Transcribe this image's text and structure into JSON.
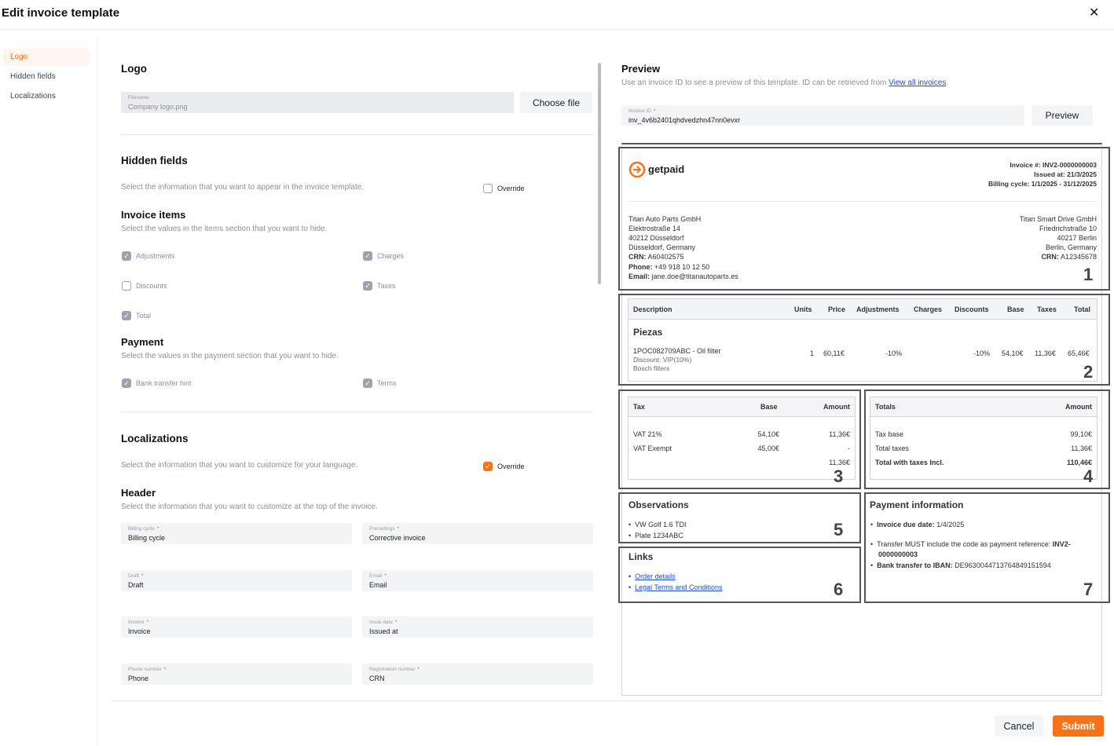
{
  "modal": {
    "title": "Edit invoice template"
  },
  "sidebar": {
    "items": [
      {
        "label": "Logo"
      },
      {
        "label": "Hidden fields"
      },
      {
        "label": "Localizations"
      }
    ]
  },
  "logo": {
    "heading": "Logo",
    "filename_label": "Filename",
    "filename_value": "Company logo.png",
    "choose_file": "Choose file"
  },
  "hidden_fields": {
    "heading": "Hidden fields",
    "description": "Select the information that you want to appear in the invoice template.",
    "override_label": "Override",
    "override_checked": false,
    "invoice_items": {
      "heading": "Invoice items",
      "description": "Select the values in the items section that you want to hide.",
      "options": [
        {
          "label": "Adjustments",
          "checked": true
        },
        {
          "label": "Charges",
          "checked": true
        },
        {
          "label": "Discounts",
          "checked": false
        },
        {
          "label": "Taxes",
          "checked": true
        },
        {
          "label": "Total",
          "checked": true
        }
      ]
    },
    "payment": {
      "heading": "Payment",
      "description": "Select the values in the payment section that you want to hide.",
      "options": [
        {
          "label": "Bank transfer hint",
          "checked": true
        },
        {
          "label": "Terms",
          "checked": true
        }
      ]
    }
  },
  "localizations": {
    "heading": "Localizations",
    "description": "Select the information that you want to customize for your language.",
    "override_label": "Override",
    "override_checked": true,
    "header": {
      "heading": "Header",
      "description": "Select the information that you want to customize at the top of the invoice.",
      "fields": [
        {
          "label": "Billing cycle",
          "value": "Billing cycle"
        },
        {
          "label": "Precedings",
          "value": "Corrective invoice"
        },
        {
          "label": "Draft",
          "value": "Draft"
        },
        {
          "label": "Email",
          "value": "Email"
        },
        {
          "label": "Invoice",
          "value": "Invoice"
        },
        {
          "label": "Issue date",
          "value": "Issued at"
        },
        {
          "label": "Phone number",
          "value": "Phone"
        },
        {
          "label": "Registration number",
          "value": "CRN"
        }
      ]
    }
  },
  "preview": {
    "heading": "Preview",
    "description": "Use an invoice ID to see a preview of this template. ID can be retrieved from ",
    "link": "View all invoices",
    "description_end": ".",
    "invoice_id_label": "Invoice ID",
    "invoice_id_value": "inv_4v6b2401qhdvedzhn47nn0evxr",
    "button": "Preview"
  },
  "invoice": {
    "brand": "getpaid",
    "meta": [
      "Invoice #: INV2-0000000003",
      "Issued at: 21/3/2025",
      "Billing cycle: 1/1/2025 - 31/12/2025"
    ],
    "seller": [
      "Titan Auto Parts GmbH",
      "Elektrostraße 14",
      "40212 Düsseldorf",
      "Düsseldorf, Germany"
    ],
    "seller_kv": [
      {
        "k": "CRN:",
        "v": " A60402575"
      },
      {
        "k": "Phone:",
        "v": " +49 918 10 12 50"
      },
      {
        "k": "Email:",
        "v": " jane.doe@titanautoparts.es"
      }
    ],
    "buyer": [
      "Titan Smart Drive GmbH",
      "Friedrichstraße 10",
      "40217 Berlin",
      "Berlin, Germany"
    ],
    "buyer_kv": [
      {
        "k": "CRN:",
        "v": " A12345678"
      }
    ],
    "items_headers": [
      "Description",
      "Units",
      "Price",
      "Adjustments",
      "Charges",
      "Discounts",
      "Base",
      "Taxes",
      "Total"
    ],
    "group": "Piezas",
    "item": {
      "desc": "1POC082709ABC - Oil filter",
      "sub1": "Discount: VIP(10%)",
      "sub2": "Bosch filters",
      "units": "1",
      "price": "60,11€",
      "adjustments": "-10%",
      "charges": "",
      "discounts": "-10%",
      "base": "54,10€",
      "taxes": "11,36€",
      "total": "65,46€"
    },
    "tax_headers": [
      "Tax",
      "Base",
      "Amount"
    ],
    "tax_rows": [
      {
        "tax": "VAT 21%",
        "base": "54,10€",
        "amount": "11,36€"
      },
      {
        "tax": "VAT Exempt",
        "base": "45,00€",
        "amount": "-"
      }
    ],
    "tax_sum": "11,36€",
    "totals_headers": [
      "Totals",
      "Amount"
    ],
    "totals_rows": [
      {
        "k": "Tax base",
        "v": "99,10€"
      },
      {
        "k": "Total taxes",
        "v": "11,36€"
      },
      {
        "k": "Total with taxes Incl.",
        "v": "110,46€"
      }
    ],
    "observations": {
      "heading": "Observations",
      "items": [
        "VW Golf 1.6 TDI",
        "Plate 1234ABC"
      ]
    },
    "links": {
      "heading": "Links",
      "items": [
        "Order details",
        "Legal Terms and Conditions"
      ]
    },
    "payment": {
      "heading": "Payment information",
      "due_k": "Invoice due date:",
      "due_v": " 1/4/2025",
      "transfer_text": "Transfer MUST include the code as payment reference: ",
      "transfer_code": "INV2-",
      "transfer_code2": "0000000003",
      "iban_k": "Bank transfer to IBAN:",
      "iban_v": " DE96300447137648491515​94"
    }
  },
  "annotations": [
    "1",
    "2",
    "3",
    "4",
    "5",
    "6",
    "7"
  ],
  "footer": {
    "cancel": "Cancel",
    "submit": "Submit"
  },
  "colors": {
    "accent": "#f97316"
  }
}
